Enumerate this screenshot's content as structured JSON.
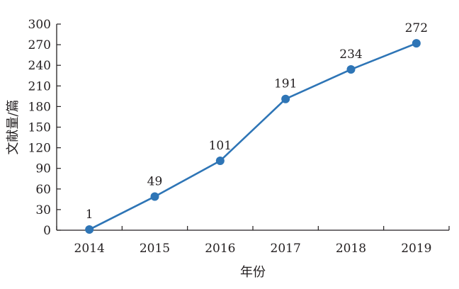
{
  "chart_data": {
    "type": "line",
    "categories": [
      "2014",
      "2015",
      "2016",
      "2017",
      "2018",
      "2019"
    ],
    "series": [
      {
        "values": [
          1,
          49,
          101,
          191,
          234,
          272
        ]
      }
    ],
    "data_labels": [
      "1",
      "49",
      "101",
      "191",
      "234",
      "272"
    ],
    "xlabel": "年份",
    "ylabel": "文献量/篇",
    "ylim": [
      0,
      300
    ],
    "yticks": [
      0,
      30,
      60,
      90,
      120,
      150,
      180,
      210,
      240,
      270,
      300
    ],
    "grid": false,
    "line_color": "#2e75b6",
    "marker_color": "#2e75b6",
    "axis_color": "#231f20"
  }
}
